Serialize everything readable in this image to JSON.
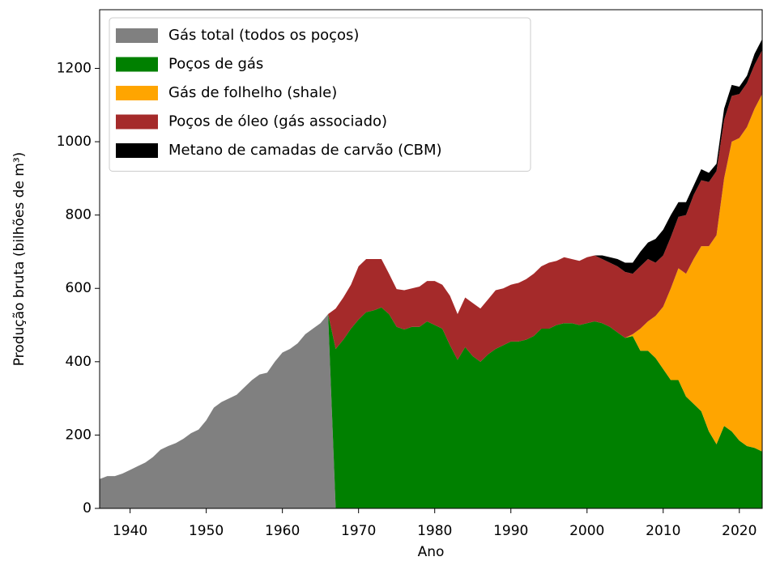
{
  "chart_data": {
    "type": "stacked_area",
    "xlabel": "Ano",
    "ylabel": "Produção bruta (bilhões de m³)",
    "x": [
      1936,
      1937,
      1938,
      1939,
      1940,
      1941,
      1942,
      1943,
      1944,
      1945,
      1946,
      1947,
      1948,
      1949,
      1950,
      1951,
      1952,
      1953,
      1954,
      1955,
      1956,
      1957,
      1958,
      1959,
      1960,
      1961,
      1962,
      1963,
      1964,
      1965,
      1966,
      1967,
      1968,
      1969,
      1970,
      1971,
      1972,
      1973,
      1974,
      1975,
      1976,
      1977,
      1978,
      1979,
      1980,
      1981,
      1982,
      1983,
      1984,
      1985,
      1986,
      1987,
      1988,
      1989,
      1990,
      1991,
      1992,
      1993,
      1994,
      1995,
      1996,
      1997,
      1998,
      1999,
      2000,
      2001,
      2002,
      2003,
      2004,
      2005,
      2006,
      2007,
      2008,
      2009,
      2010,
      2011,
      2012,
      2013,
      2014,
      2015,
      2016,
      2017,
      2018,
      2019,
      2020,
      2021,
      2022,
      2023
    ],
    "series": [
      {
        "name": "Gás total (todos os poços)",
        "color": "#808080",
        "values": [
          80,
          88,
          88,
          95,
          105,
          115,
          125,
          140,
          160,
          170,
          178,
          190,
          205,
          215,
          240,
          275,
          290,
          300,
          310,
          330,
          350,
          365,
          370,
          400,
          425,
          435,
          450,
          475,
          490,
          505,
          530,
          0,
          0,
          0,
          0,
          0,
          0,
          0,
          0,
          0,
          0,
          0,
          0,
          0,
          0,
          0,
          0,
          0,
          0,
          0,
          0,
          0,
          0,
          0,
          0,
          0,
          0,
          0,
          0,
          0,
          0,
          0,
          0,
          0,
          0,
          0,
          0,
          0,
          0,
          0,
          0,
          0,
          0,
          0,
          0,
          0,
          0,
          0,
          0,
          0,
          0,
          0,
          0,
          0,
          0,
          0,
          0,
          0
        ]
      },
      {
        "name": "Poços de gás",
        "color": "#008000",
        "values": [
          0,
          0,
          0,
          0,
          0,
          0,
          0,
          0,
          0,
          0,
          0,
          0,
          0,
          0,
          0,
          0,
          0,
          0,
          0,
          0,
          0,
          0,
          0,
          0,
          0,
          0,
          0,
          0,
          0,
          0,
          0,
          435,
          460,
          490,
          515,
          535,
          540,
          548,
          530,
          495,
          488,
          495,
          495,
          510,
          500,
          490,
          445,
          405,
          440,
          415,
          400,
          420,
          435,
          445,
          455,
          455,
          460,
          470,
          490,
          490,
          500,
          505,
          505,
          500,
          505,
          510,
          505,
          495,
          480,
          465,
          470,
          430,
          430,
          410,
          380,
          350,
          350,
          305,
          285,
          265,
          210,
          175,
          225,
          210,
          185,
          170,
          165,
          155
        ]
      },
      {
        "name": "Gás de folhelho (shale)",
        "color": "#ffa500",
        "values": [
          0,
          0,
          0,
          0,
          0,
          0,
          0,
          0,
          0,
          0,
          0,
          0,
          0,
          0,
          0,
          0,
          0,
          0,
          0,
          0,
          0,
          0,
          0,
          0,
          0,
          0,
          0,
          0,
          0,
          0,
          0,
          0,
          0,
          0,
          0,
          0,
          0,
          0,
          0,
          0,
          0,
          0,
          0,
          0,
          0,
          0,
          0,
          0,
          0,
          0,
          0,
          0,
          0,
          0,
          0,
          0,
          0,
          0,
          0,
          0,
          0,
          0,
          0,
          0,
          0,
          0,
          0,
          0,
          0,
          0,
          5,
          60,
          80,
          115,
          170,
          250,
          305,
          335,
          395,
          450,
          505,
          570,
          675,
          790,
          825,
          870,
          925,
          975
        ]
      },
      {
        "name": "Poços de óleo (gás associado)",
        "color": "#a52a2a",
        "values": [
          0,
          0,
          0,
          0,
          0,
          0,
          0,
          0,
          0,
          0,
          0,
          0,
          0,
          0,
          0,
          0,
          0,
          0,
          0,
          0,
          0,
          0,
          0,
          0,
          0,
          0,
          0,
          0,
          0,
          0,
          0,
          110,
          115,
          120,
          145,
          145,
          140,
          132,
          110,
          103,
          107,
          105,
          110,
          110,
          120,
          120,
          135,
          125,
          135,
          145,
          145,
          150,
          160,
          155,
          155,
          160,
          165,
          170,
          170,
          180,
          175,
          180,
          175,
          175,
          180,
          180,
          175,
          175,
          180,
          180,
          165,
          170,
          170,
          145,
          140,
          140,
          140,
          160,
          175,
          180,
          175,
          175,
          160,
          125,
          120,
          120,
          120,
          120
        ]
      },
      {
        "name": "Metano de camadas de carvão (CBM)",
        "color": "#000000",
        "values": [
          0,
          0,
          0,
          0,
          0,
          0,
          0,
          0,
          0,
          0,
          0,
          0,
          0,
          0,
          0,
          0,
          0,
          0,
          0,
          0,
          0,
          0,
          0,
          0,
          0,
          0,
          0,
          0,
          0,
          0,
          0,
          0,
          0,
          0,
          0,
          0,
          0,
          0,
          0,
          0,
          0,
          0,
          0,
          0,
          0,
          0,
          0,
          0,
          0,
          0,
          0,
          0,
          0,
          0,
          0,
          0,
          0,
          0,
          0,
          0,
          0,
          0,
          0,
          0,
          0,
          0,
          10,
          15,
          20,
          25,
          30,
          40,
          45,
          65,
          70,
          60,
          40,
          35,
          25,
          30,
          25,
          20,
          30,
          30,
          20,
          20,
          30,
          30
        ]
      }
    ],
    "xlim": [
      1936,
      2023
    ],
    "xticks": [
      1940,
      1950,
      1960,
      1970,
      1980,
      1990,
      2000,
      2010,
      2020
    ],
    "ylim": [
      0,
      1360
    ],
    "yticks": [
      0,
      200,
      400,
      600,
      800,
      1000,
      1200
    ],
    "legend": "upper left"
  }
}
